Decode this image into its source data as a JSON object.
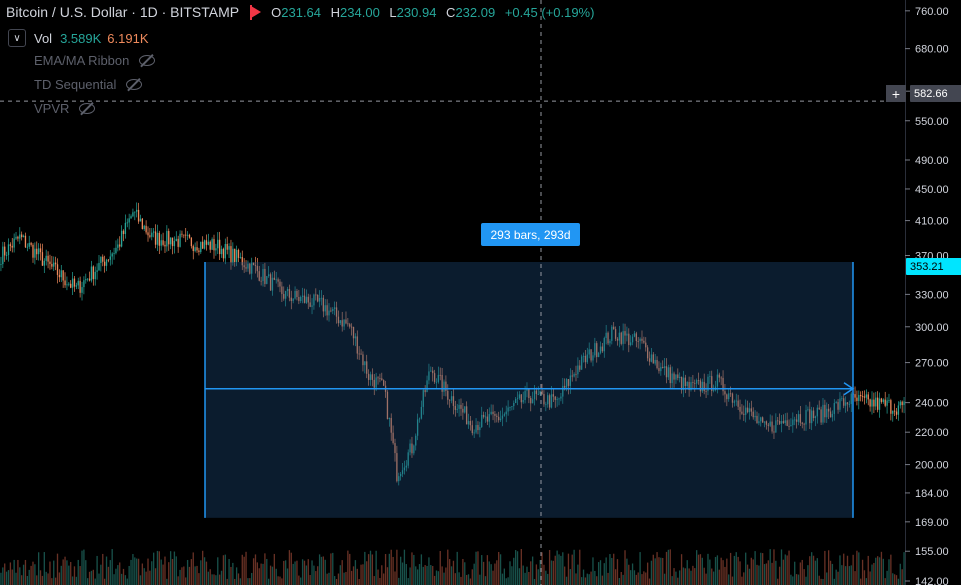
{
  "header": {
    "title": "Bitcoin / U.S. Dollar · 1D · BITSTAMP",
    "open_label": "O",
    "open": "231.64",
    "high_label": "H",
    "high": "234.00",
    "low_label": "L",
    "low": "230.94",
    "close_label": "C",
    "close": "232.09",
    "change": "+0.45 (+0.19%)"
  },
  "indicators": {
    "vol_label": "Vol",
    "vol_value_1": "3.589K",
    "vol_value_2": "6.191K",
    "hidden": [
      "EMA/MA Ribbon",
      "TD Sequential",
      "VPVR"
    ]
  },
  "measure_label": "293 bars, 293d",
  "crosshair_price": "582.66",
  "last_price": "353.21",
  "colors": {
    "up": "#26a69a",
    "down": "#ef8a5c",
    "accent": "#2196f3",
    "last_price": "#00e5ff",
    "bg": "#000000"
  },
  "chart_data": {
    "type": "candlestick",
    "y_scale": "log",
    "ylim": [
      142,
      780
    ],
    "y_ticks": [
      142,
      155,
      169,
      184,
      200,
      220,
      240,
      270,
      300,
      330,
      370,
      410,
      450,
      490,
      550,
      600,
      680,
      760
    ],
    "y_tick_labels": [
      "142.00",
      "155.00",
      "169.00",
      "184.00",
      "200.00",
      "220.00",
      "240.00",
      "270.00",
      "300.00",
      "330.00",
      "370.00",
      "410.00",
      "450.00",
      "490.00",
      "550.00",
      "600.00",
      "680.00",
      "760.00"
    ],
    "bar_count": 480,
    "close_path": [
      [
        0,
        370
      ],
      [
        10,
        390
      ],
      [
        25,
        360
      ],
      [
        40,
        335
      ],
      [
        55,
        365
      ],
      [
        62,
        380
      ],
      [
        70,
        420
      ],
      [
        80,
        390
      ],
      [
        100,
        385
      ],
      [
        115,
        380
      ],
      [
        135,
        355
      ],
      [
        150,
        330
      ],
      [
        170,
        320
      ],
      [
        185,
        300
      ],
      [
        195,
        260
      ],
      [
        203,
        250
      ],
      [
        210,
        195
      ],
      [
        218,
        210
      ],
      [
        228,
        265
      ],
      [
        235,
        250
      ],
      [
        250,
        225
      ],
      [
        265,
        230
      ],
      [
        280,
        245
      ],
      [
        295,
        240
      ],
      [
        305,
        265
      ],
      [
        315,
        280
      ],
      [
        325,
        295
      ],
      [
        340,
        285
      ],
      [
        350,
        265
      ],
      [
        365,
        250
      ],
      [
        380,
        255
      ],
      [
        395,
        235
      ],
      [
        405,
        222
      ],
      [
        420,
        230
      ],
      [
        435,
        232
      ],
      [
        450,
        242
      ],
      [
        470,
        238
      ],
      [
        490,
        235
      ],
      [
        505,
        232
      ],
      [
        520,
        225
      ],
      [
        535,
        232
      ],
      [
        545,
        247
      ],
      [
        560,
        245
      ],
      [
        575,
        262
      ],
      [
        590,
        285
      ],
      [
        600,
        310
      ],
      [
        610,
        285
      ],
      [
        625,
        290
      ],
      [
        635,
        295
      ],
      [
        650,
        285
      ],
      [
        665,
        268
      ],
      [
        680,
        260
      ],
      [
        690,
        225
      ],
      [
        700,
        218
      ],
      [
        715,
        228
      ],
      [
        730,
        240
      ],
      [
        745,
        230
      ],
      [
        760,
        232
      ],
      [
        775,
        238
      ],
      [
        790,
        243
      ],
      [
        805,
        250
      ],
      [
        820,
        268
      ],
      [
        835,
        295
      ],
      [
        848,
        340
      ],
      [
        855,
        400
      ],
      [
        862,
        390
      ],
      [
        868,
        350
      ],
      [
        875,
        330
      ],
      [
        885,
        325
      ],
      [
        895,
        320
      ],
      [
        903,
        330
      ]
    ],
    "measure": {
      "bars": 293,
      "days": 293,
      "price_top": 363,
      "price_bottom": 171,
      "price_level": 250
    }
  }
}
